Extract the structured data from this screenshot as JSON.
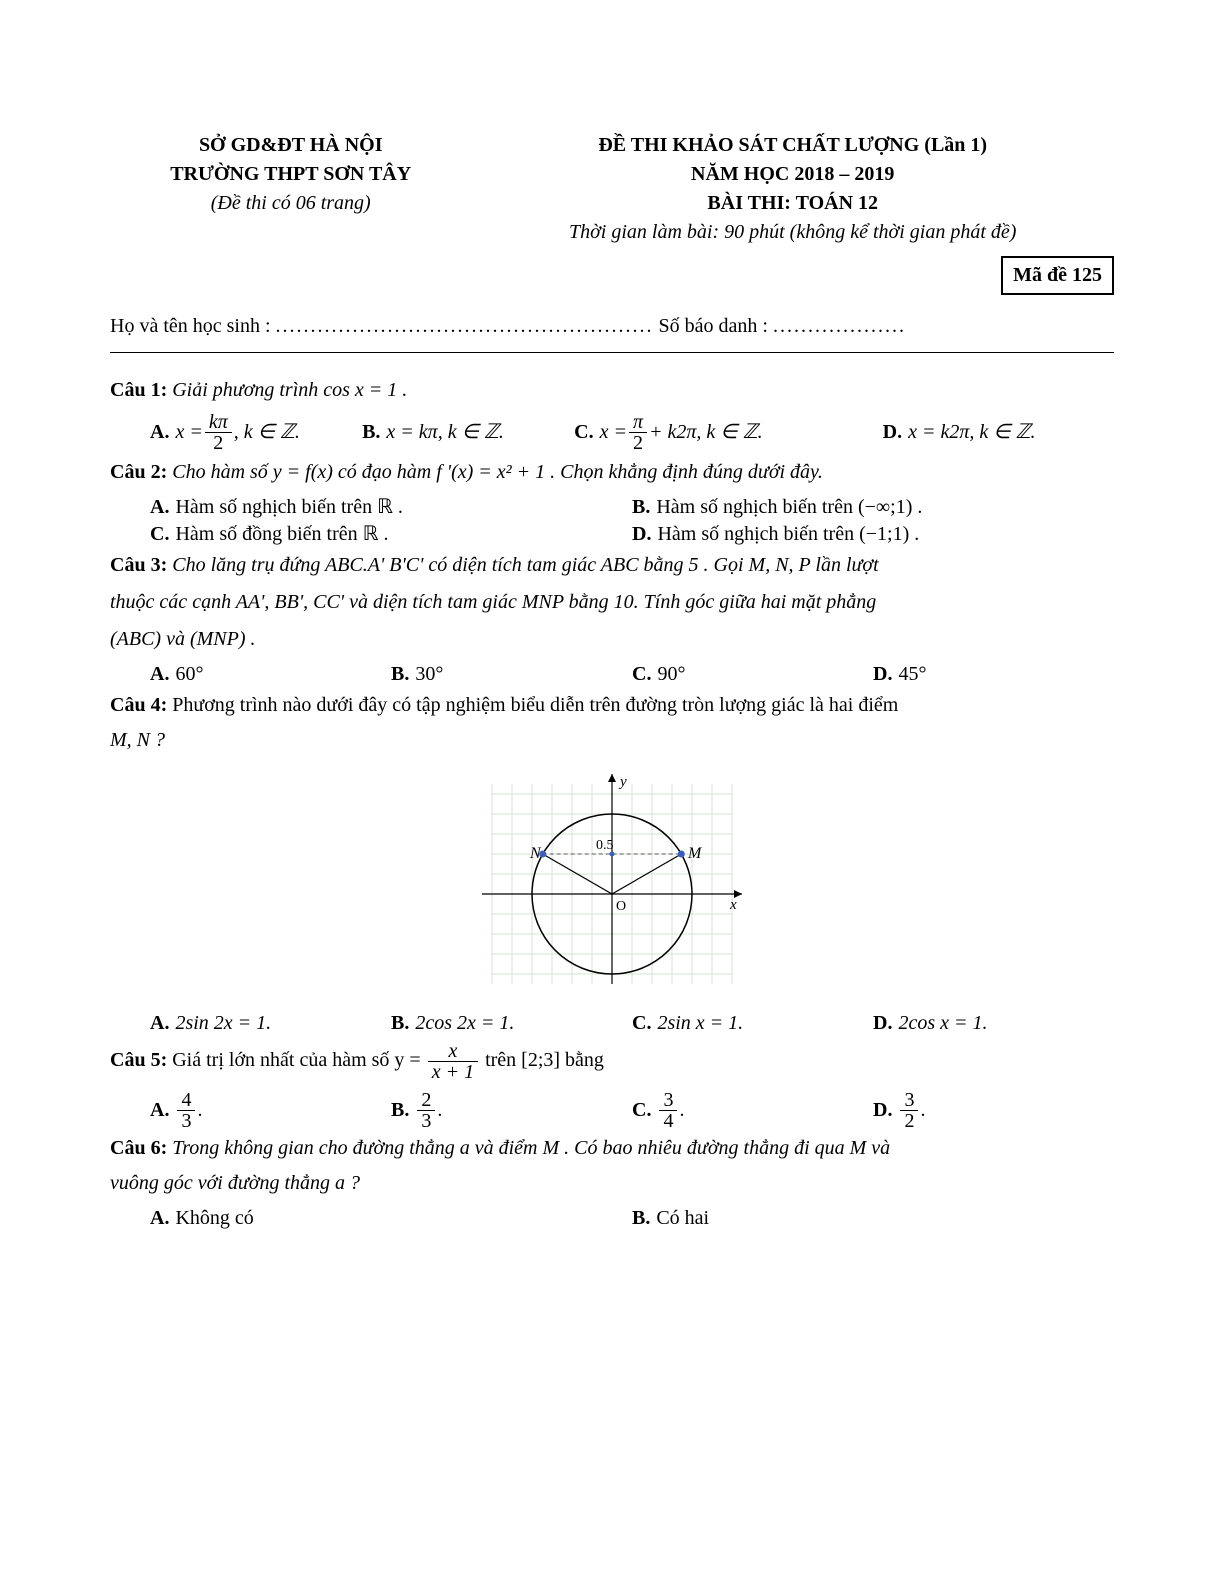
{
  "header": {
    "left": {
      "line1": "SỞ GD&ĐT HÀ NỘI",
      "line2": "TRƯỜNG THPT SƠN TÂY",
      "note": "(Đề thi có 06 trang)"
    },
    "right": {
      "line1": "ĐỀ THI KHẢO SÁT CHẤT LƯỢNG (Lần 1)",
      "line2": "NĂM HỌC 2018 – 2019",
      "line3": "BÀI THI: TOÁN 12",
      "time": "Thời gian làm bài: 90 phút (không kể thời gian phát đề)",
      "code_label": "Mã đề 125"
    }
  },
  "info": {
    "name_label": "Họ và tên học sinh :",
    "name_dots": "......................................................",
    "id_label": "Số báo danh :",
    "id_dots": "..................."
  },
  "q1": {
    "label": "Câu 1:",
    "text": " Giải phương trình  cos x = 1 .",
    "A_prefix": "x = ",
    "A_num": "kπ",
    "A_den": "2",
    "A_suffix": ", k ∈ ℤ.",
    "B": "x = kπ, k ∈ ℤ.",
    "C_prefix": "x = ",
    "C_num": "π",
    "C_den": "2",
    "C_mid": " + k2π, k ∈ ℤ.",
    "D": "x = k2π, k ∈ ℤ."
  },
  "q2": {
    "label": "Câu 2:",
    "text": " Cho hàm số  y = f(x)  có đạo hàm  f '(x) = x² + 1 . Chọn khẳng định đúng dưới đây.",
    "A": "Hàm số nghịch biến trên  ℝ .",
    "B": "Hàm số nghịch biến trên  (−∞;1) .",
    "C": "Hàm số đồng biến trên  ℝ .",
    "D": "Hàm số nghịch biến trên  (−1;1) ."
  },
  "q3": {
    "label": "Câu 3:",
    "text1": " Cho lăng trụ đứng  ABC.A' B'C'  có diện tích tam giác  ABC  bằng  5 . Gọi  M, N, P  lần lượt",
    "text2": "thuộc các cạnh  AA', BB', CC'  và diện tích tam giác  MNP  bằng 10. Tính góc giữa hai mặt phẳng",
    "text3": "(ABC)  và  (MNP) .",
    "A": "60°",
    "B": "30°",
    "C": "90°",
    "D": "45°"
  },
  "q4": {
    "label": "Câu 4:",
    "text1": " Phương trình nào dưới đây có tập nghiệm biểu diễn trên đường tròn lượng giác là hai điểm",
    "text2": "M, N ?",
    "fig": {
      "grid_color": "#d7e0d7",
      "axis_color": "#000000",
      "circle_color": "#000000",
      "point_color": "#3a5fbf",
      "N_label": "N",
      "M_label": "M",
      "O_label": "O",
      "x_label": "x",
      "y_label": "y",
      "val_label": "0.5",
      "dash_color": "#555555"
    },
    "A": "2sin 2x = 1.",
    "B": "2cos 2x = 1.",
    "C": "2sin x = 1.",
    "D": "2cos x = 1."
  },
  "q5": {
    "label": "Câu 5:",
    "pre": " Giá trị lớn nhất của hàm số  y = ",
    "num": "x",
    "den": "x + 1",
    "post": "  trên  [2;3]  bằng",
    "A_num": "4",
    "A_den": "3",
    "B_num": "2",
    "B_den": "3",
    "C_num": "3",
    "C_den": "4",
    "D_num": "3",
    "D_den": "2",
    "dot": "."
  },
  "q6": {
    "label": "Câu 6:",
    "text1": " Trong không gian cho đường thẳng  a  và điểm  M  . Có bao nhiêu đường thẳng đi qua  M  và",
    "text2": "vuông góc với đường thẳng  a ?",
    "A": "Không có",
    "B": "Có hai"
  },
  "labels": {
    "A": "A.",
    "B": "B.",
    "C": "C.",
    "D": "D."
  }
}
